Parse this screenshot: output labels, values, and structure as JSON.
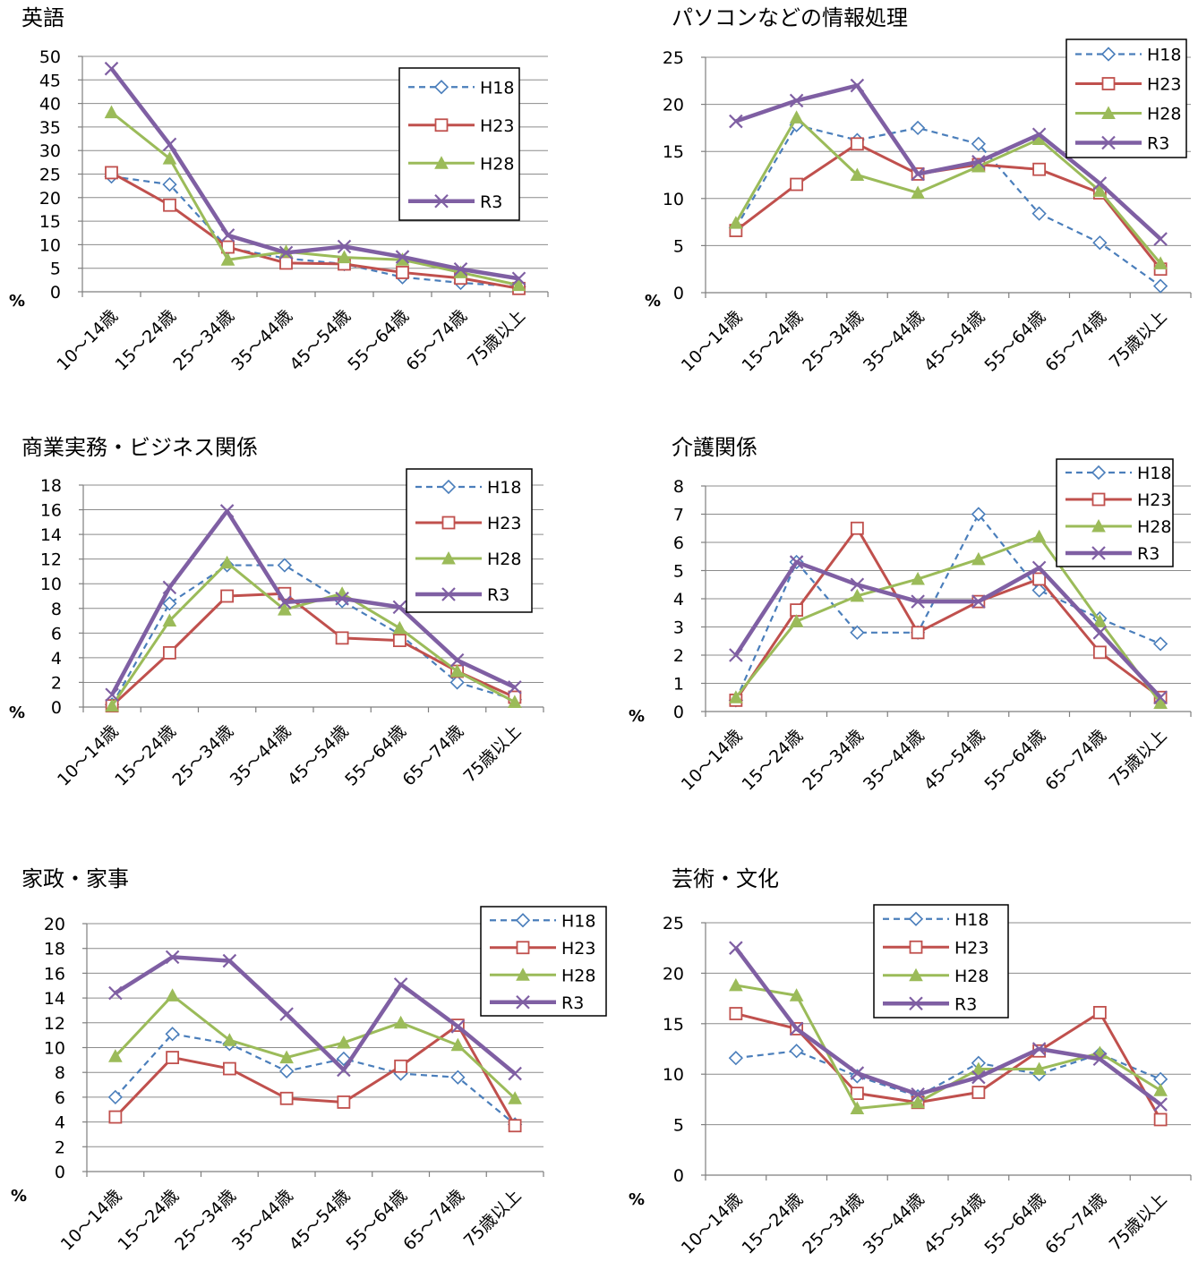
{
  "colors": {
    "H18": "#4a7ebb",
    "H23": "#c0504d",
    "H28": "#9bbb59",
    "R3": "#7f5fa3"
  },
  "series_style": {
    "H18": {
      "marker": "diamond-open",
      "dash": "dashed"
    },
    "H23": {
      "marker": "square-open",
      "dash": "solid"
    },
    "H28": {
      "marker": "triangle-filled",
      "dash": "solid"
    },
    "R3": {
      "marker": "x",
      "dash": "solid-thick"
    }
  },
  "chart_data": [
    {
      "type": "line",
      "title": "英語",
      "unit_label": "%",
      "categories": [
        "10～14歳",
        "15～24歳",
        "25～34歳",
        "35～44歳",
        "45～54歳",
        "55～64歳",
        "65～74歳",
        "75歳以上"
      ],
      "ylim": [
        0,
        50
      ],
      "yticks": [
        0,
        5,
        10,
        15,
        20,
        25,
        30,
        35,
        40,
        45,
        50
      ],
      "grid": true,
      "legend": "right",
      "series": [
        {
          "name": "H18",
          "values": [
            24.5,
            22.8,
            9.3,
            7.1,
            5.9,
            3.1,
            1.9,
            1.1
          ]
        },
        {
          "name": "H23",
          "values": [
            25.3,
            18.4,
            9.5,
            6.1,
            5.9,
            4.1,
            2.9,
            0.7
          ]
        },
        {
          "name": "H28",
          "values": [
            38.1,
            28.3,
            6.8,
            8.5,
            7.3,
            6.8,
            4.1,
            1.4
          ]
        },
        {
          "name": "R3",
          "values": [
            47.4,
            31.3,
            12.0,
            8.3,
            9.6,
            7.4,
            4.8,
            2.8
          ]
        }
      ]
    },
    {
      "type": "line",
      "title": "パソコンなどの情報処理",
      "unit_label": "%",
      "categories": [
        "10～14歳",
        "15～24歳",
        "25～34歳",
        "35～44歳",
        "45～54歳",
        "55～64歳",
        "65～74歳",
        "75歳以上"
      ],
      "ylim": [
        0,
        25
      ],
      "yticks": [
        0,
        5,
        10,
        15,
        20,
        25
      ],
      "grid": true,
      "legend": "top-right",
      "series": [
        {
          "name": "H18",
          "values": [
            6.9,
            17.8,
            16.2,
            17.5,
            15.8,
            8.4,
            5.3,
            0.7
          ]
        },
        {
          "name": "H23",
          "values": [
            6.6,
            11.5,
            15.8,
            12.6,
            13.6,
            13.1,
            10.6,
            2.5
          ]
        },
        {
          "name": "H28",
          "values": [
            7.4,
            18.6,
            12.5,
            10.6,
            13.4,
            16.3,
            10.8,
            3.1
          ]
        },
        {
          "name": "R3",
          "values": [
            18.2,
            20.4,
            22.0,
            12.6,
            13.9,
            16.8,
            11.6,
            5.7
          ]
        }
      ]
    },
    {
      "type": "line",
      "title": "商業実務・ビジネス関係",
      "unit_label": "%",
      "categories": [
        "10～14歳",
        "15～24歳",
        "25～34歳",
        "35～44歳",
        "45～54歳",
        "55～64歳",
        "65～74歳",
        "75歳以上"
      ],
      "ylim": [
        0,
        18
      ],
      "yticks": [
        0,
        2,
        4,
        6,
        8,
        10,
        12,
        14,
        16,
        18
      ],
      "grid": true,
      "legend": "right",
      "series": [
        {
          "name": "H18",
          "values": [
            0.2,
            8.4,
            11.5,
            11.5,
            8.6,
            5.9,
            2.0,
            0.6
          ]
        },
        {
          "name": "H23",
          "values": [
            0.1,
            4.4,
            9.0,
            9.2,
            5.6,
            5.4,
            2.9,
            0.8
          ]
        },
        {
          "name": "H28",
          "values": [
            0.1,
            7.0,
            11.7,
            7.9,
            9.2,
            6.4,
            2.9,
            0.4
          ]
        },
        {
          "name": "R3",
          "values": [
            1.0,
            9.7,
            15.9,
            8.5,
            8.8,
            8.1,
            3.8,
            1.6
          ]
        }
      ]
    },
    {
      "type": "line",
      "title": "介護関係",
      "unit_label": "%",
      "categories": [
        "10～14歳",
        "15～24歳",
        "25～34歳",
        "35～44歳",
        "45～54歳",
        "55～64歳",
        "65～74歳",
        "75歳以上"
      ],
      "ylim": [
        0,
        8
      ],
      "yticks": [
        0,
        1,
        2,
        3,
        4,
        5,
        6,
        7,
        8
      ],
      "grid": true,
      "legend": "top-right",
      "series": [
        {
          "name": "H18",
          "values": [
            0.4,
            5.3,
            2.8,
            2.8,
            7.0,
            4.3,
            3.3,
            2.4
          ]
        },
        {
          "name": "H23",
          "values": [
            0.4,
            3.6,
            6.5,
            2.8,
            3.9,
            4.7,
            2.1,
            0.5
          ]
        },
        {
          "name": "H28",
          "values": [
            0.5,
            3.2,
            4.1,
            4.7,
            5.4,
            6.2,
            3.2,
            0.3
          ]
        },
        {
          "name": "R3",
          "values": [
            2.0,
            5.3,
            4.5,
            3.9,
            3.9,
            5.1,
            2.8,
            0.5
          ]
        }
      ]
    },
    {
      "type": "line",
      "title": "家政・家事",
      "unit_label": "%",
      "categories": [
        "10～14歳",
        "15～24歳",
        "25～34歳",
        "35～44歳",
        "45～54歳",
        "55～64歳",
        "65～74歳",
        "75歳以上"
      ],
      "ylim": [
        0,
        20
      ],
      "yticks": [
        0,
        2,
        4,
        6,
        8,
        10,
        12,
        14,
        16,
        18,
        20
      ],
      "grid": true,
      "legend": "top-right",
      "series": [
        {
          "name": "H18",
          "values": [
            6.0,
            11.1,
            10.3,
            8.1,
            9.1,
            7.9,
            7.6,
            3.8
          ]
        },
        {
          "name": "H23",
          "values": [
            4.4,
            9.2,
            8.3,
            5.9,
            5.6,
            8.5,
            11.8,
            3.7
          ]
        },
        {
          "name": "H28",
          "values": [
            9.3,
            14.2,
            10.6,
            9.2,
            10.4,
            12.0,
            10.2,
            5.9
          ]
        },
        {
          "name": "R3",
          "values": [
            14.4,
            17.3,
            17.0,
            12.7,
            8.2,
            15.1,
            11.7,
            7.9
          ]
        }
      ]
    },
    {
      "type": "line",
      "title": "芸術・文化",
      "unit_label": "%",
      "categories": [
        "10～14歳",
        "15～24歳",
        "25～34歳",
        "35～44歳",
        "45～54歳",
        "55～64歳",
        "65～74歳",
        "75歳以上"
      ],
      "ylim": [
        0,
        25
      ],
      "yticks": [
        0,
        5,
        10,
        15,
        20,
        25
      ],
      "grid": true,
      "legend": "top",
      "series": [
        {
          "name": "H18",
          "values": [
            11.6,
            12.3,
            9.8,
            7.8,
            11.1,
            10.0,
            12.0,
            9.5
          ]
        },
        {
          "name": "H23",
          "values": [
            16.0,
            14.5,
            8.1,
            7.2,
            8.2,
            12.3,
            16.1,
            5.5
          ]
        },
        {
          "name": "H28",
          "values": [
            18.8,
            17.8,
            6.6,
            7.2,
            10.5,
            10.5,
            12.1,
            8.4
          ]
        },
        {
          "name": "R3",
          "values": [
            22.5,
            14.5,
            10.1,
            8.0,
            9.7,
            12.5,
            11.5,
            7.0
          ]
        }
      ]
    }
  ]
}
